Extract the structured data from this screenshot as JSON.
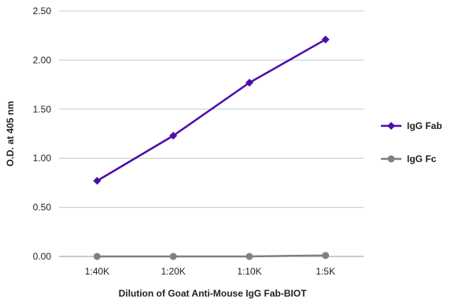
{
  "chart_data": {
    "type": "line",
    "categories": [
      "1:40K",
      "1:20K",
      "1:10K",
      "1:5K"
    ],
    "series": [
      {
        "name": "IgG Fab",
        "values": [
          0.77,
          1.23,
          1.77,
          2.21
        ],
        "color": "#4b0fa8",
        "marker": "diamond"
      },
      {
        "name": "IgG Fc",
        "values": [
          0.0,
          0.0,
          0.0,
          0.01
        ],
        "color": "#808080",
        "marker": "circle"
      }
    ],
    "title": "",
    "xlabel": "Dilution of Goat Anti-Mouse IgG Fab-BIOT",
    "ylabel": "O.D. at 405 nm",
    "ylim": [
      0,
      2.5
    ],
    "yticks": [
      "0.00",
      "0.50",
      "1.00",
      "1.50",
      "2.00",
      "2.50"
    ],
    "grid": "horizontal",
    "legend_position": "right"
  }
}
